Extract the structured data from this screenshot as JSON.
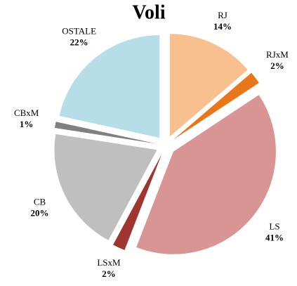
{
  "chart_data": {
    "type": "pie",
    "title": "Voli",
    "categories": [
      "RJ",
      "RJxM",
      "LS",
      "LSxM",
      "CB",
      "CBxM",
      "OSTALE"
    ],
    "values": [
      14,
      2,
      41,
      2,
      20,
      1,
      22
    ],
    "value_labels": [
      "14%",
      "2%",
      "41%",
      "2%",
      "20%",
      "1%",
      "22%"
    ],
    "colors": [
      "#f9c08f",
      "#e8761a",
      "#d99594",
      "#a0342f",
      "#bfbfbf",
      "#808080",
      "#b7dde8"
    ]
  }
}
